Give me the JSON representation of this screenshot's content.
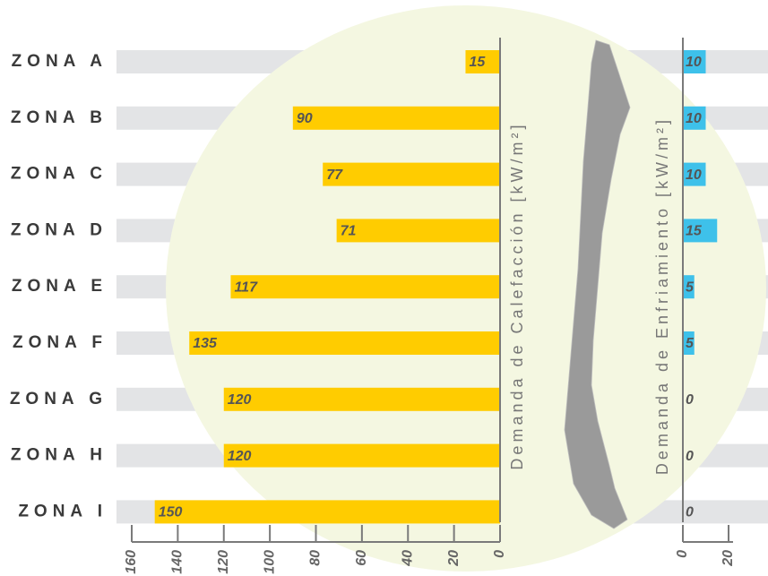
{
  "chart_data": [
    {
      "type": "bar",
      "orientation": "horizontal",
      "reversed": true,
      "x_label": "Demanda de Calefacción [kW/m²]",
      "categories": [
        "ZONA A",
        "ZONA B",
        "ZONA C",
        "ZONA D",
        "ZONA E",
        "ZONA F",
        "ZONA G",
        "ZONA H",
        "ZONA I"
      ],
      "values": [
        15,
        90,
        77,
        71,
        117,
        135,
        120,
        120,
        150
      ],
      "color": "#ffcc00",
      "xlim": [
        0,
        160
      ],
      "xticks": [
        0,
        20,
        40,
        60,
        80,
        100,
        120,
        140,
        160
      ]
    },
    {
      "type": "bar",
      "orientation": "horizontal",
      "reversed": false,
      "x_label": "Demanda de Enfriamiento [kW/m²]",
      "values": [
        10,
        10,
        10,
        15,
        5,
        5,
        0,
        0,
        0
      ],
      "color": "#3ec1ea",
      "xlim": [
        0,
        20
      ],
      "xticks": [
        0,
        20
      ]
    }
  ]
}
